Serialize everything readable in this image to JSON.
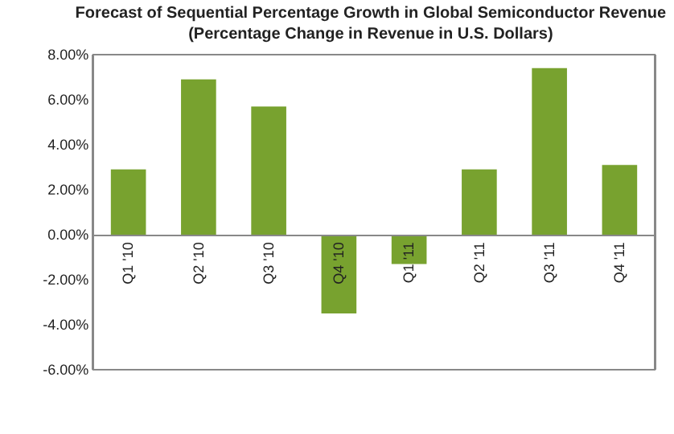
{
  "chart_data": {
    "type": "bar",
    "title": "Forecast of Sequential Percentage Growth in Global Semiconductor Revenue\n(Percentage Change in Revenue in U.S. Dollars)",
    "categories": [
      "Q1 '10",
      "Q2 '10",
      "Q3 '10",
      "Q4 '10",
      "Q1 '11",
      "Q2 '11",
      "Q3 '11",
      "Q4 '11"
    ],
    "values": [
      2.9,
      6.9,
      5.7,
      -3.5,
      -1.3,
      2.9,
      7.4,
      3.1
    ],
    "color": "#78a22f",
    "ylim": [
      -6,
      8
    ],
    "yticks": [
      {
        "value": -6,
        "label": "-6.00%"
      },
      {
        "value": -4,
        "label": "-4.00%"
      },
      {
        "value": -2,
        "label": "-2.00%"
      },
      {
        "value": 0,
        "label": "0.00%"
      },
      {
        "value": 2,
        "label": "2.00%"
      },
      {
        "value": 4,
        "label": "4.00%"
      },
      {
        "value": 6,
        "label": "6.00%"
      },
      {
        "value": 8,
        "label": "8.00%"
      }
    ],
    "grid": false,
    "legend": false
  }
}
